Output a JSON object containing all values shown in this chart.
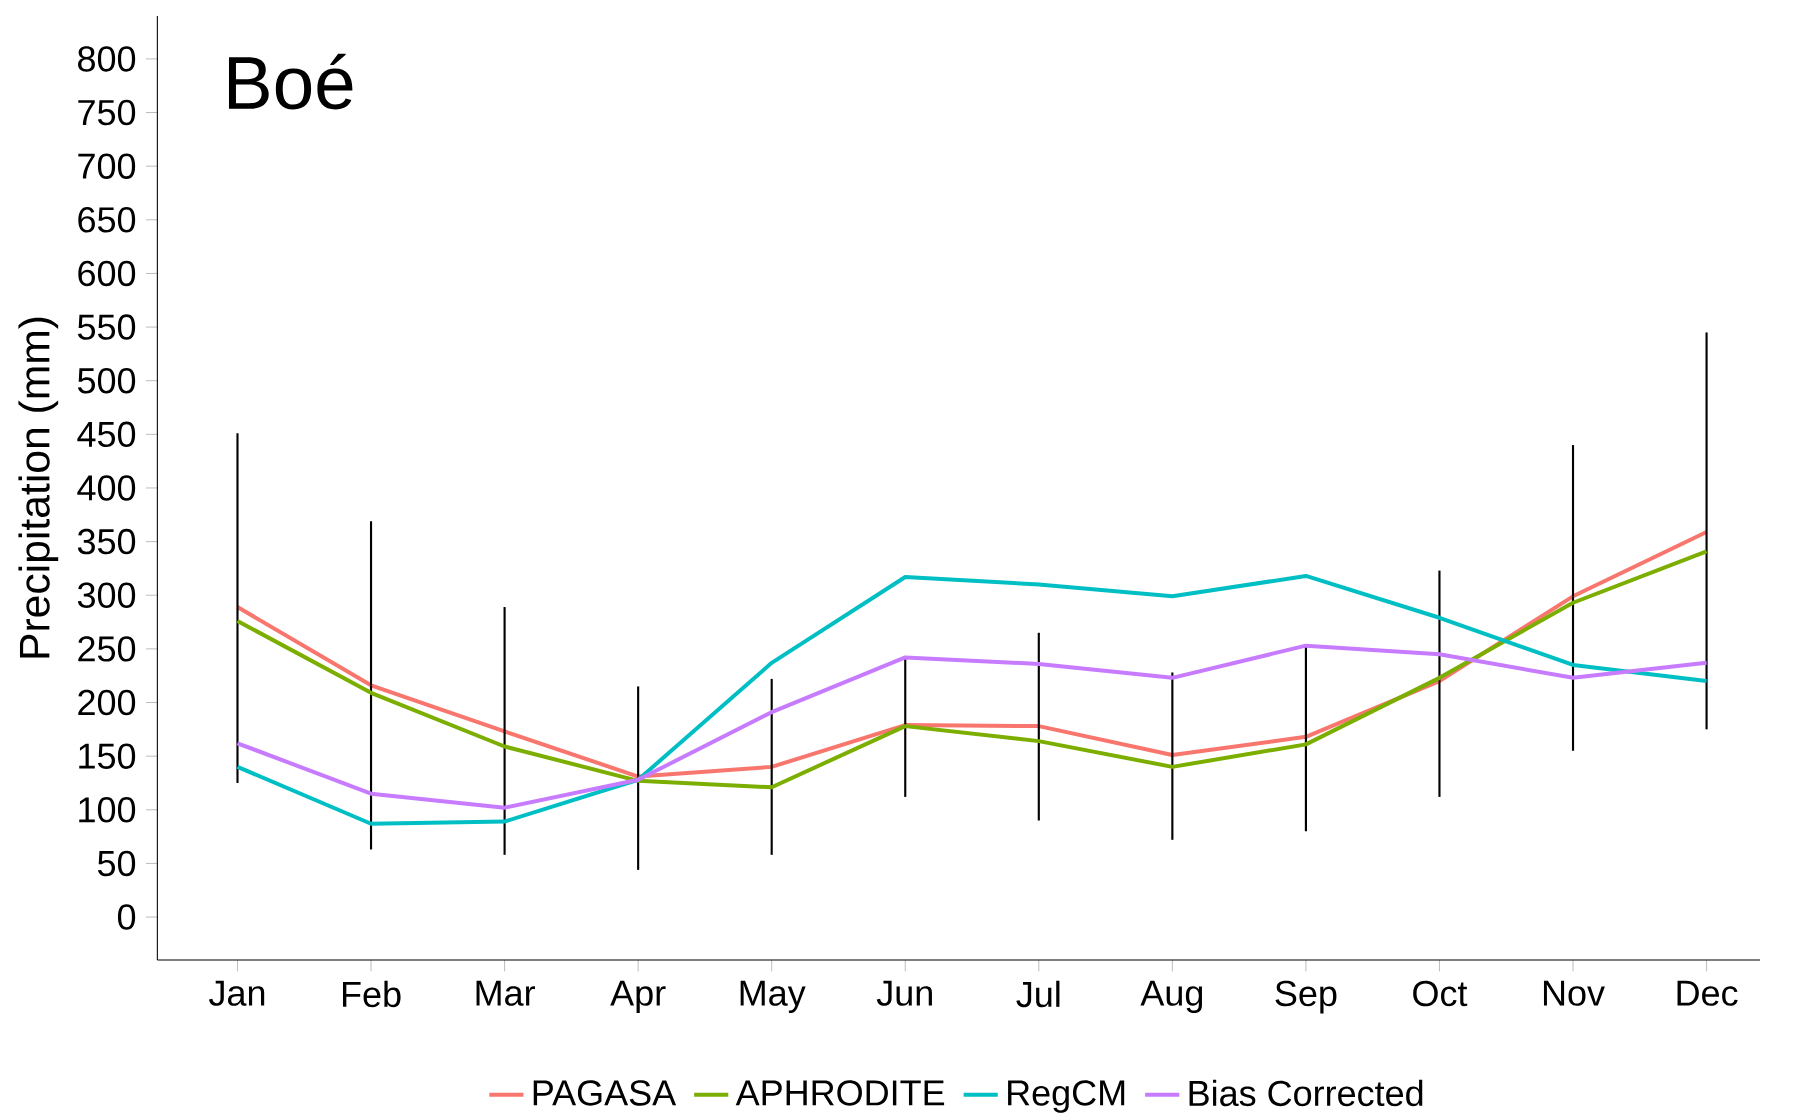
{
  "chart_data": {
    "type": "line",
    "title": "Boé",
    "ylabel": "Precipitation (mm)",
    "categories": [
      "Jan",
      "Feb",
      "Mar",
      "Apr",
      "May",
      "Jun",
      "Jul",
      "Aug",
      "Sep",
      "Oct",
      "Nov",
      "Dec"
    ],
    "series": [
      {
        "name": "PAGASA",
        "color": "#f8766d",
        "values": [
          289,
          216,
          173,
          131,
          140,
          179,
          178,
          151,
          168,
          220,
          299,
          359
        ],
        "errors": [
          [
            125,
            451
          ],
          [
            63,
            369
          ],
          [
            58,
            289
          ],
          [
            44,
            215
          ],
          [
            58,
            222
          ],
          [
            112,
            243
          ],
          [
            90,
            265
          ],
          [
            72,
            228
          ],
          [
            80,
            254
          ],
          [
            112,
            323
          ],
          [
            155,
            440
          ],
          [
            175,
            545
          ]
        ]
      },
      {
        "name": "APHRODITE",
        "color": "#7cae00",
        "values": [
          276,
          209,
          159,
          127,
          121,
          178,
          164,
          140,
          161,
          223,
          293,
          341
        ]
      },
      {
        "name": "RegCM",
        "color": "#00bfc4",
        "values": [
          140,
          87,
          89,
          128,
          237,
          317,
          310,
          299,
          318,
          279,
          235,
          220
        ]
      },
      {
        "name": "Bias Corrected",
        "color": "#c77cff",
        "values": [
          162,
          115,
          102,
          128,
          191,
          242,
          236,
          223,
          253,
          245,
          223,
          237
        ]
      }
    ],
    "ylim": [
      -40,
      840
    ],
    "yticks": [
      0,
      50,
      100,
      150,
      200,
      250,
      300,
      350,
      400,
      450,
      500,
      550,
      600,
      650,
      700,
      750,
      800
    ],
    "legend": "bottom",
    "line_style": "solid",
    "marker": "none"
  }
}
